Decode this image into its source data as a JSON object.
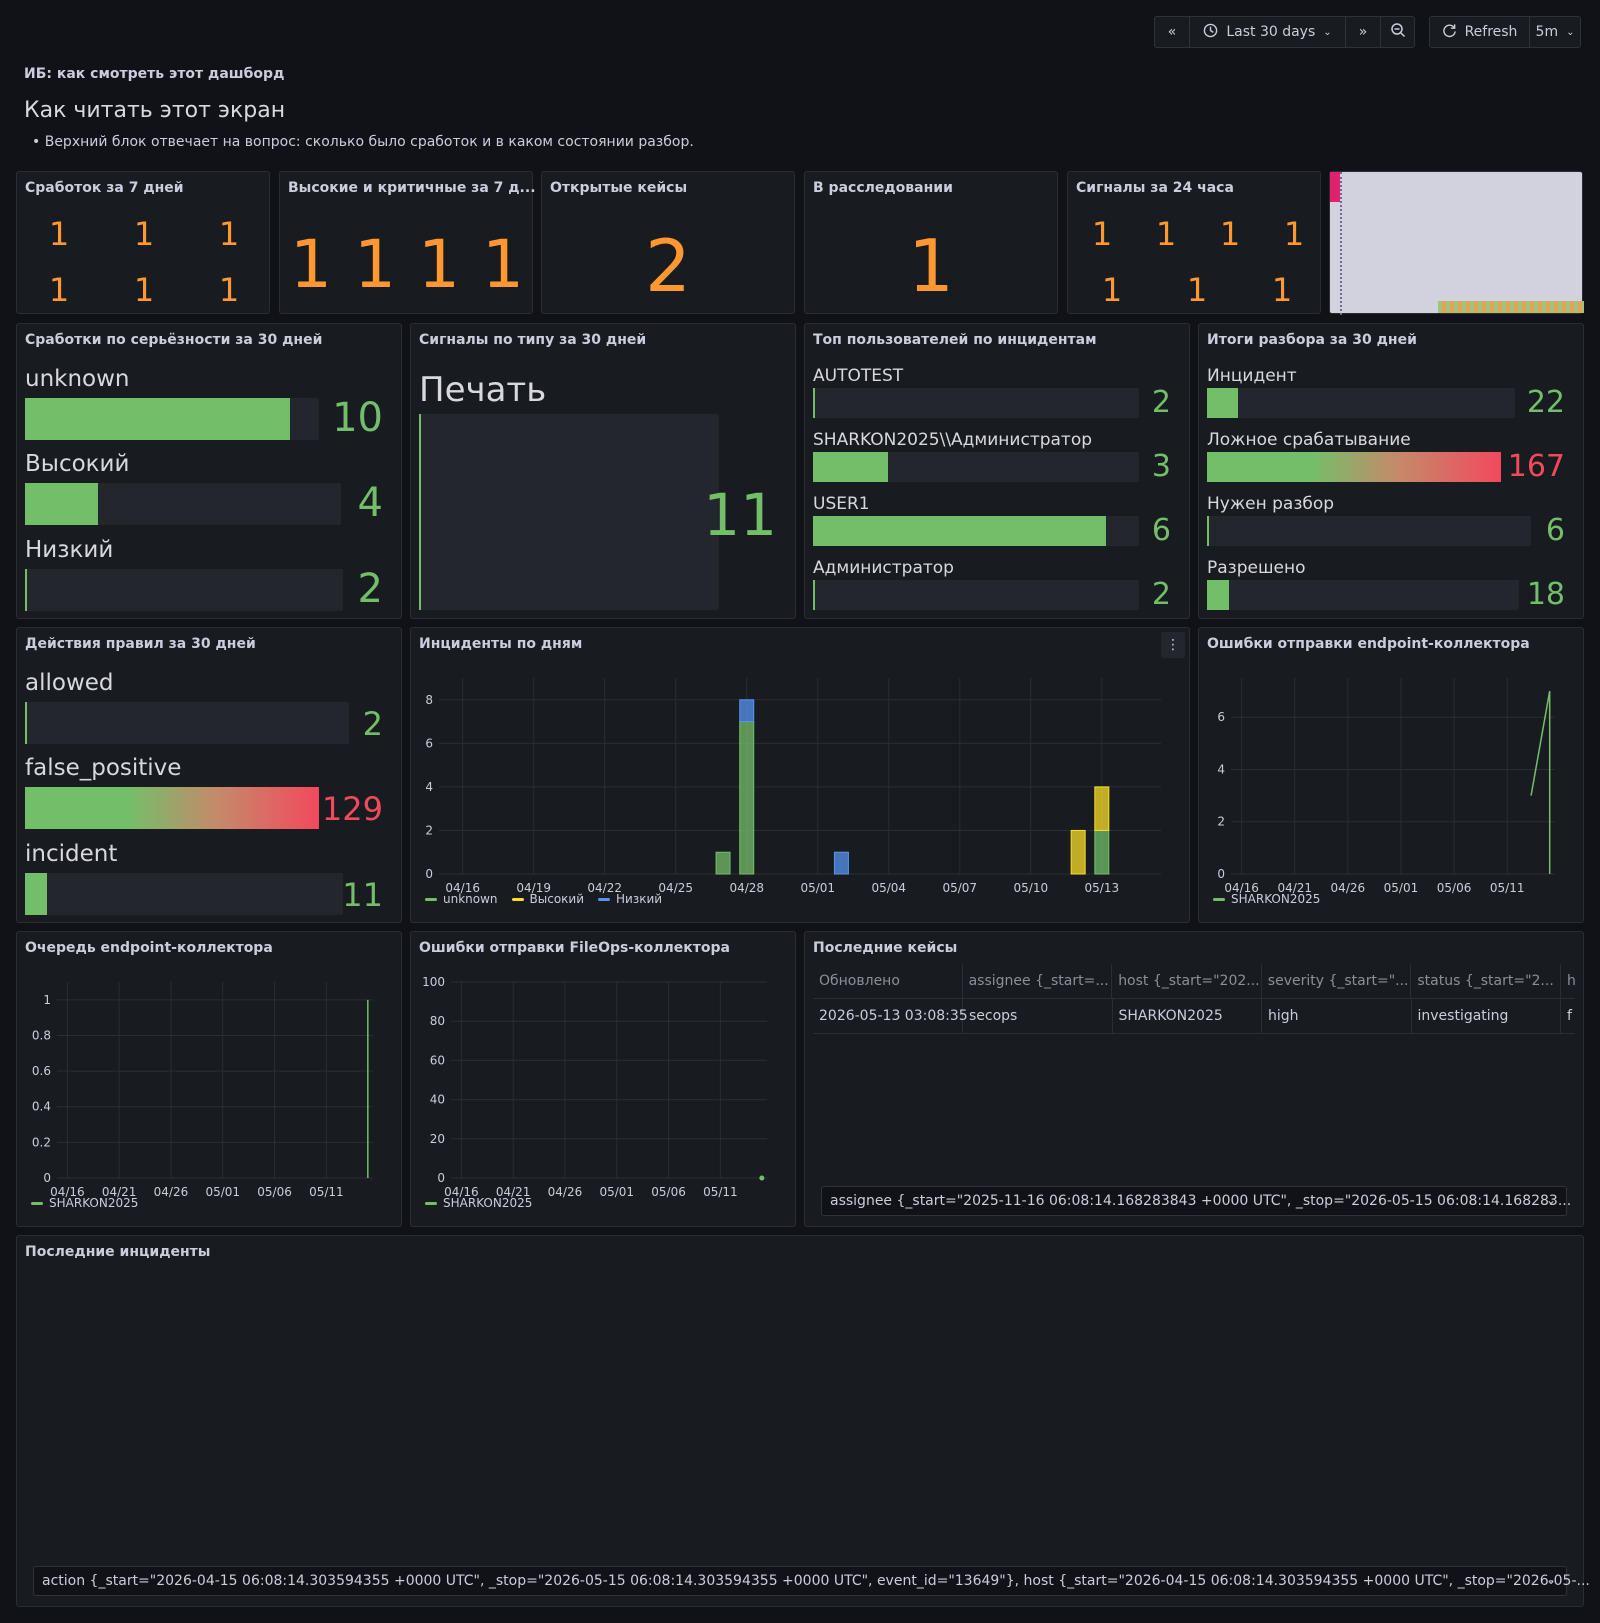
{
  "toolbar": {
    "back_icon": "«",
    "time_range": "Last 30 days",
    "forward_icon": "»",
    "refresh_label": "Refresh",
    "interval": "5m"
  },
  "intro": {
    "panel_title": "ИБ: как смотреть этот дашборд",
    "heading": "Как читать этот экран",
    "bullet": "Верхний блок отвечает на вопрос: сколько было сработок и в каком состоянии разбор."
  },
  "stats": {
    "s1": {
      "title": "Сработок за 7 дней",
      "values": [
        "1",
        "1",
        "1",
        "1",
        "1",
        "1"
      ]
    },
    "s2": {
      "title": "Высокие и критичные за 7 д...",
      "values": [
        "1",
        "1",
        "1",
        "1"
      ]
    },
    "s3": {
      "title": "Открытые кейсы",
      "value": "2"
    },
    "s4": {
      "title": "В расследовании",
      "value": "1"
    },
    "s5": {
      "title": "Сигналы за 24 часа",
      "values": [
        "1",
        "1",
        "1",
        "1",
        "1",
        "1",
        "1"
      ]
    }
  },
  "severity": {
    "title": "Сработки по серьёзности за 30 дней",
    "items": [
      {
        "label": "unknown",
        "value": "10",
        "fraction": 0.9
      },
      {
        "label": "Высокий",
        "value": "4",
        "fraction": 0.23
      },
      {
        "label": "Низкий",
        "value": "2",
        "fraction": 0.0
      }
    ]
  },
  "signals_type": {
    "title": "Сигналы по типу за 30 дней",
    "label": "Печать",
    "value": "11"
  },
  "top_users": {
    "title": "Топ пользователей по инцидентам",
    "items": [
      {
        "label": "AUTOTEST",
        "value": "2",
        "fraction": 0.0
      },
      {
        "label": "SHARKON2025\\\\Администратор",
        "value": "3",
        "fraction": 0.23
      },
      {
        "label": "USER1",
        "value": "6",
        "fraction": 0.9
      },
      {
        "label": "Администратор",
        "value": "2",
        "fraction": 0.0
      }
    ]
  },
  "outcomes": {
    "title": "Итоги разбора за 30 дней",
    "items": [
      {
        "label": "Инцидент",
        "value": "22",
        "fraction": 0.1,
        "color": "#73bf69"
      },
      {
        "label": "Ложное срабатывание",
        "value": "167",
        "fraction": 1.0,
        "color": "#f2495c"
      },
      {
        "label": "Нужен разбор",
        "value": "6",
        "fraction": 0.0,
        "color": "#73bf69"
      },
      {
        "label": "Разрешено",
        "value": "18",
        "fraction": 0.07,
        "color": "#73bf69"
      }
    ]
  },
  "rule_actions": {
    "title": "Действия правил за 30 дней",
    "items": [
      {
        "label": "allowed",
        "value": "2",
        "fraction": 0.0,
        "color": "#73bf69"
      },
      {
        "label": "false_positive",
        "value": "129",
        "fraction": 1.0,
        "color": "#f2495c"
      },
      {
        "label": "incident",
        "value": "11",
        "fraction": 0.07,
        "color": "#73bf69"
      }
    ]
  },
  "chart_data": [
    {
      "type": "bar",
      "title": "Инциденты по дням",
      "x_ticks": [
        "04/16",
        "04/19",
        "04/22",
        "04/25",
        "04/28",
        "05/01",
        "05/04",
        "05/07",
        "05/10",
        "05/13"
      ],
      "ylim": [
        0,
        9
      ],
      "y_ticks": [
        0,
        2,
        4,
        6,
        8
      ],
      "series": [
        {
          "name": "unknown",
          "color": "#73bf69",
          "points": [
            {
              "x": "04/27",
              "y": 1
            },
            {
              "x": "04/28",
              "y": 7
            },
            {
              "x": "05/13",
              "y": 2
            }
          ]
        },
        {
          "name": "Высокий",
          "color": "#fade2a",
          "points": [
            {
              "x": "05/12",
              "y": 2
            },
            {
              "x": "05/13",
              "y": 2
            }
          ]
        },
        {
          "name": "Низкий",
          "color": "#5794f2",
          "points": [
            {
              "x": "04/28",
              "y": 1
            },
            {
              "x": "05/02",
              "y": 1
            }
          ]
        }
      ]
    },
    {
      "type": "line",
      "title": "Ошибки отправки endpoint-коллектора",
      "x_ticks": [
        "04/16",
        "04/21",
        "04/26",
        "05/01",
        "05/06",
        "05/11"
      ],
      "ylim": [
        0,
        7.5
      ],
      "y_ticks": [
        0,
        2,
        4,
        6
      ],
      "series": [
        {
          "name": "SHARKON2025",
          "color": "#73bf69",
          "points": [
            {
              "x": "05/14",
              "y": 3
            },
            {
              "x": "05/15",
              "y": 7
            },
            {
              "x": "05/15",
              "y": 0
            }
          ]
        }
      ]
    },
    {
      "type": "line",
      "title": "Очередь endpoint-коллектора",
      "x_ticks": [
        "04/16",
        "04/21",
        "04/26",
        "05/01",
        "05/06",
        "05/11"
      ],
      "ylim": [
        0,
        1.1
      ],
      "y_ticks": [
        0,
        0.2,
        0.4,
        0.6,
        0.8,
        1
      ],
      "series": [
        {
          "name": "SHARKON2025",
          "color": "#73bf69",
          "points": [
            {
              "x": "05/15",
              "y": 0
            },
            {
              "x": "05/15",
              "y": 1
            }
          ]
        }
      ]
    },
    {
      "type": "scatter",
      "title": "Ошибки отправки FileOps-коллектора",
      "x_ticks": [
        "04/16",
        "04/21",
        "04/26",
        "05/01",
        "05/06",
        "05/11"
      ],
      "ylim": [
        0,
        100
      ],
      "y_ticks": [
        0,
        20,
        40,
        60,
        80,
        100
      ],
      "series": [
        {
          "name": "SHARKON2025",
          "color": "#73bf69",
          "points": [
            {
              "x": "05/15",
              "y": 0
            }
          ]
        }
      ]
    }
  ],
  "cases": {
    "title": "Последние кейсы",
    "columns": [
      "Обновлено",
      "assignee {_start=...",
      "host {_start=\"202...",
      "severity {_start=\"...",
      "status {_start=\"2...",
      "h"
    ],
    "rows": [
      [
        "2026-05-13 03:08:35",
        "secops",
        "SHARKON2025",
        "high",
        "investigating",
        "f"
      ]
    ],
    "selector": "assignee {_start=\"2025-11-16 06:08:14.168283843 +0000 UTC\", _stop=\"2026-05-15 06:08:14.168283..."
  },
  "incidents": {
    "title": "Последние инциденты",
    "selector": "action {_start=\"2026-04-15 06:08:14.303594355 +0000 UTC\", _stop=\"2026-05-15 06:08:14.303594355 +0000 UTC\", event_id=\"13649\"}, host {_start=\"2026-04-15 06:08:14.303594355 +0000 UTC\", _stop=\"2026-05-..."
  }
}
